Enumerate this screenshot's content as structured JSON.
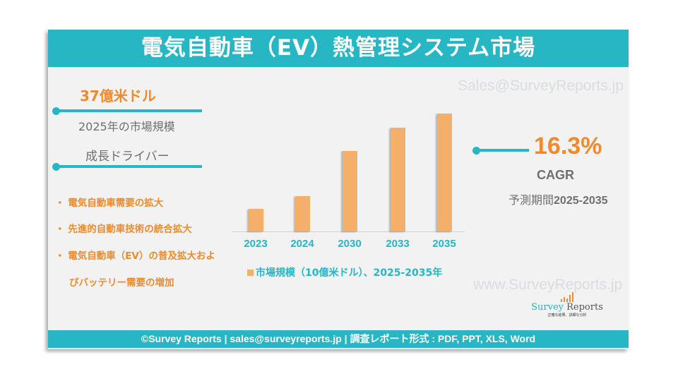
{
  "header": {
    "title": "電気自動車（EV）熱管理システム市場"
  },
  "watermarks": {
    "email": "Sales@SurveyReports.jp",
    "website": "www.SurveyReports.jp"
  },
  "market_size": {
    "value": "37億米ドル",
    "label": "2025年の市場規模"
  },
  "drivers": {
    "heading": "成長ドライバー",
    "items": [
      "電気自動車需要の拡大",
      "先進的自動車技術の統合拡大",
      "電気自動車（EV）の普及拡大およ",
      "びバッテリー需要の増加"
    ]
  },
  "cagr": {
    "value": "16.3%",
    "label": "CAGR",
    "period_label": "予測期間",
    "period": "2025-2035"
  },
  "logo": {
    "name_part1": "Survey",
    "name_part2": "Reports",
    "tagline": "正確な結果、詳細な分析"
  },
  "footer": {
    "text": "©Survey Reports | sales@surveyreports.jp |  調査レポート形式 : PDF, PPT, XLS, Word"
  },
  "colors": {
    "teal": "#27b6c4",
    "orange": "#ef8b2c",
    "bar": "#f4b06a"
  },
  "chart_data": {
    "type": "bar",
    "categories": [
      "2023",
      "2024",
      "2030",
      "2033",
      "2035"
    ],
    "values": [
      3.2,
      5.0,
      11.4,
      14.7,
      16.7
    ],
    "legend": "市場規模（10億米ドル）、2025-2035年",
    "legend_position": "bottom",
    "ylim": [
      0,
      16.7
    ],
    "grid": false,
    "y_axis_shown": false
  }
}
